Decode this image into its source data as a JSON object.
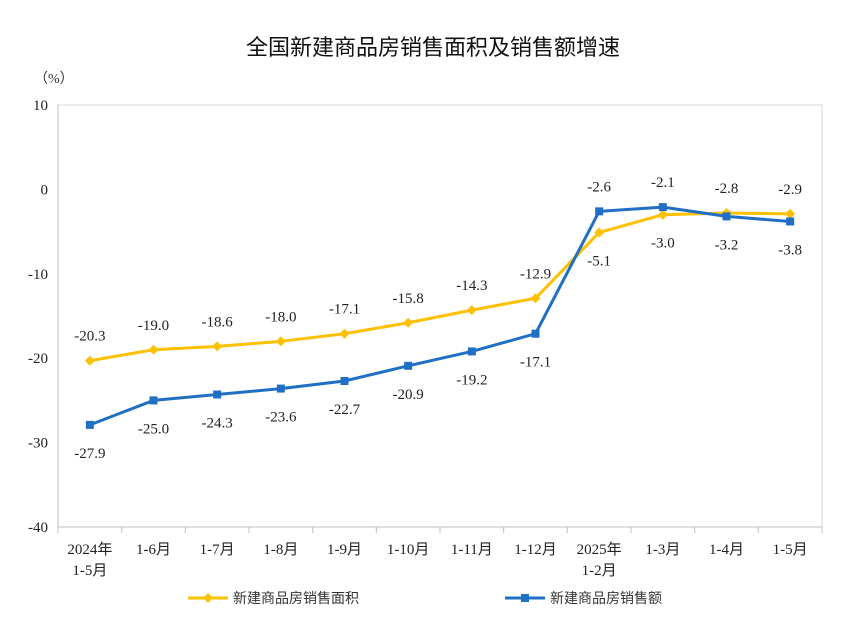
{
  "chart_data": {
    "type": "line",
    "title": "全国新建商品房销售面积及销售额增速",
    "unit": "（%）",
    "categories": [
      [
        "2024年",
        "1-5月"
      ],
      [
        "1-6月"
      ],
      [
        "1-7月"
      ],
      [
        "1-8月"
      ],
      [
        "1-9月"
      ],
      [
        "1-10月"
      ],
      [
        "1-11月"
      ],
      [
        "1-12月"
      ],
      [
        "2025年",
        "1-2月"
      ],
      [
        "1-3月"
      ],
      [
        "1-4月"
      ],
      [
        "1-5月"
      ]
    ],
    "ylim": [
      -40,
      10
    ],
    "yticks": [
      10,
      0,
      -10,
      -20,
      -30,
      -40
    ],
    "grid": false,
    "legend": "bottom",
    "series": [
      {
        "name": "新建商品房销售面积",
        "color": "#FFC000",
        "marker": "diamond",
        "values": [
          -20.3,
          -19.0,
          -18.6,
          -18.0,
          -17.1,
          -15.8,
          -14.3,
          -12.9,
          -5.1,
          -3.0,
          -2.8,
          -2.9
        ]
      },
      {
        "name": "新建商品房销售额",
        "color": "#1F6FC5",
        "marker": "square",
        "values": [
          -27.9,
          -25.0,
          -24.3,
          -23.6,
          -22.7,
          -20.9,
          -19.2,
          -17.1,
          -2.6,
          -2.1,
          -3.2,
          -3.8
        ]
      }
    ]
  }
}
